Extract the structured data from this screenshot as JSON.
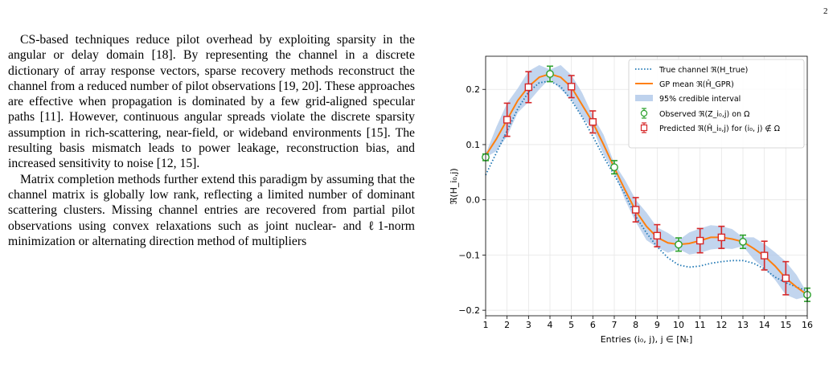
{
  "page": {
    "number": "2"
  },
  "paragraphs": [
    "CS-based techniques reduce pilot overhead by exploiting sparsity in the angular or delay domain [18]. By representing the channel in a discrete dictionary of array response vectors, sparse recovery methods reconstruct the channel from a reduced number of pilot observations [19, 20]. These approaches are effective when propagation is dominated by a few grid-aligned specular paths [11]. However, continuous angular spreads violate the discrete sparsity assumption in rich-scattering, near-field, or wideband environments [15]. The resulting basis mismatch leads to power leakage, reconstruction bias, and increased sensitivity to noise [12, 15].",
    "Matrix completion methods further extend this paradigm by assuming that the channel matrix is globally low rank, reflecting a limited number of dominant scattering clusters. Missing channel entries are recovered from partial pilot observations using convex relaxations such as joint nuclear- and ℓ1-norm minimization or alternating direction method of multipliers"
  ],
  "chart_data": {
    "type": "line",
    "xlabel": "Entries (i₀, j),  j ∈ [Nₜ]",
    "ylabel": "ℜ(H_i₀,j)",
    "xlim": [
      1,
      16
    ],
    "ylim": [
      -0.21,
      0.26
    ],
    "xticks": [
      1,
      2,
      3,
      4,
      5,
      6,
      7,
      8,
      9,
      10,
      11,
      12,
      13,
      14,
      15,
      16
    ],
    "yticks": [
      -0.2,
      -0.1,
      0.0,
      0.1,
      0.2
    ],
    "ytick_labels": [
      "−0.2",
      "−0.1",
      "0.0",
      "0.1",
      "0.2"
    ],
    "grid": true,
    "legend_position": "top-right",
    "legend": [
      "True channel ℜ(H_true)",
      "GP mean ℜ(Ĥ_GPR)",
      "95% credible interval",
      "Observed ℜ(Z_i₀,j) on Ω",
      "Predicted ℜ(Ĥ_i₀,j) for (i₀, j) ∉ Ω"
    ],
    "colors": {
      "true": "#1f77b4",
      "mean": "#ff7f0e",
      "band": "#aec7e8",
      "observed": "#2ca02c",
      "predicted": "#d62728"
    },
    "true_channel": {
      "x": [
        1,
        1.5,
        2,
        2.5,
        3,
        3.5,
        4,
        4.5,
        5,
        5.5,
        6,
        6.5,
        7,
        7.5,
        8,
        8.5,
        9,
        9.5,
        10,
        10.5,
        11,
        11.5,
        12,
        12.5,
        13,
        13.5,
        14,
        14.5,
        15,
        15.5,
        16
      ],
      "y": [
        0.045,
        0.085,
        0.125,
        0.165,
        0.195,
        0.212,
        0.215,
        0.205,
        0.18,
        0.15,
        0.115,
        0.078,
        0.045,
        0.01,
        -0.03,
        -0.06,
        -0.085,
        -0.105,
        -0.118,
        -0.122,
        -0.12,
        -0.115,
        -0.112,
        -0.11,
        -0.11,
        -0.115,
        -0.125,
        -0.14,
        -0.15,
        -0.158,
        -0.165
      ]
    },
    "gp_mean": {
      "x": [
        1,
        1.5,
        2,
        2.5,
        3,
        3.5,
        4,
        4.5,
        5,
        5.5,
        6,
        6.5,
        7,
        7.5,
        8,
        8.5,
        9,
        9.5,
        10,
        10.5,
        11,
        11.5,
        12,
        12.5,
        13,
        13.5,
        14,
        14.5,
        15,
        15.5,
        16
      ],
      "y": [
        0.08,
        0.11,
        0.145,
        0.18,
        0.205,
        0.222,
        0.228,
        0.222,
        0.204,
        0.172,
        0.14,
        0.1,
        0.058,
        0.018,
        -0.02,
        -0.048,
        -0.068,
        -0.078,
        -0.081,
        -0.079,
        -0.074,
        -0.068,
        -0.068,
        -0.071,
        -0.076,
        -0.088,
        -0.102,
        -0.12,
        -0.142,
        -0.158,
        -0.172
      ]
    },
    "band_halfwidth": [
      0.003,
      0.022,
      0.03,
      0.022,
      0.028,
      0.022,
      0.008,
      0.022,
      0.022,
      0.022,
      0.012,
      0.018,
      0.008,
      0.018,
      0.02,
      0.025,
      0.018,
      0.018,
      0.008,
      0.02,
      0.022,
      0.022,
      0.02,
      0.018,
      0.008,
      0.02,
      0.022,
      0.025,
      0.03,
      0.022,
      0.003
    ],
    "observed": {
      "x": [
        1,
        4,
        7,
        10,
        13,
        16
      ],
      "y": [
        0.077,
        0.228,
        0.059,
        -0.081,
        -0.076,
        -0.172
      ],
      "err": [
        0.006,
        0.014,
        0.012,
        0.012,
        0.012,
        0.012
      ]
    },
    "predicted": {
      "x": [
        2,
        3,
        5,
        6,
        8,
        9,
        11,
        12,
        14,
        15
      ],
      "y": [
        0.145,
        0.204,
        0.205,
        0.141,
        -0.018,
        -0.065,
        -0.074,
        -0.068,
        -0.101,
        -0.142
      ],
      "err": [
        0.03,
        0.028,
        0.02,
        0.02,
        0.022,
        0.02,
        0.022,
        0.02,
        0.026,
        0.03
      ]
    }
  }
}
